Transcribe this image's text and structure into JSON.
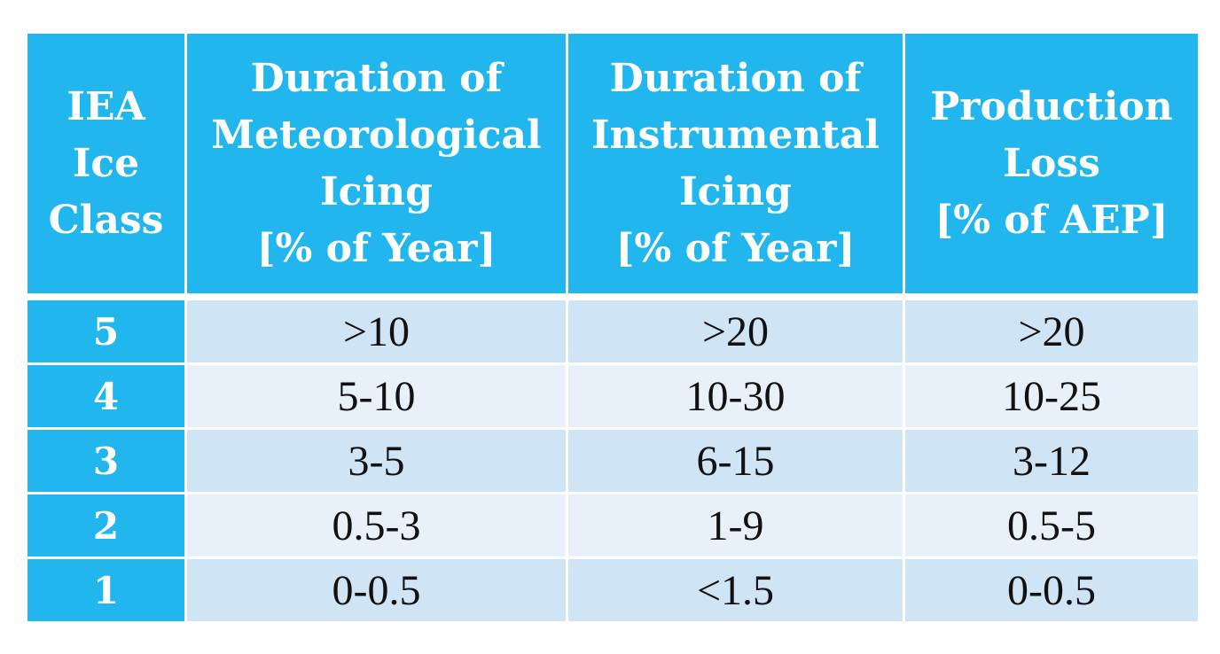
{
  "table": {
    "headers": [
      {
        "lines": [
          "IEA",
          "Ice",
          "Class"
        ]
      },
      {
        "lines": [
          "Duration of",
          "Meteorological",
          "Icing",
          "[% of Year]"
        ]
      },
      {
        "lines": [
          "Duration of",
          "Instrumental",
          "Icing",
          "[% of Year]"
        ]
      },
      {
        "lines": [
          "Production",
          "Loss",
          "[% of AEP]"
        ]
      }
    ],
    "rows": [
      {
        "ice_class": "5",
        "meteorological": ">10",
        "instrumental": ">20",
        "production_loss": ">20"
      },
      {
        "ice_class": "4",
        "meteorological": "5-10",
        "instrumental": "10-30",
        "production_loss": "10-25"
      },
      {
        "ice_class": "3",
        "meteorological": "3-5",
        "instrumental": "6-15",
        "production_loss": "3-12"
      },
      {
        "ice_class": "2",
        "meteorological": "0.5-3",
        "instrumental": "1-9",
        "production_loss": "0.5-5"
      },
      {
        "ice_class": "1",
        "meteorological": "0-0.5",
        "instrumental": "<1.5",
        "production_loss": "0-0.5"
      }
    ],
    "colors": {
      "header_bg": "#21b6ee",
      "row_odd_bg": "#cfe4f5",
      "row_even_bg": "#e8f1fa",
      "header_text": "#ffffff",
      "body_text": "#111111"
    }
  }
}
